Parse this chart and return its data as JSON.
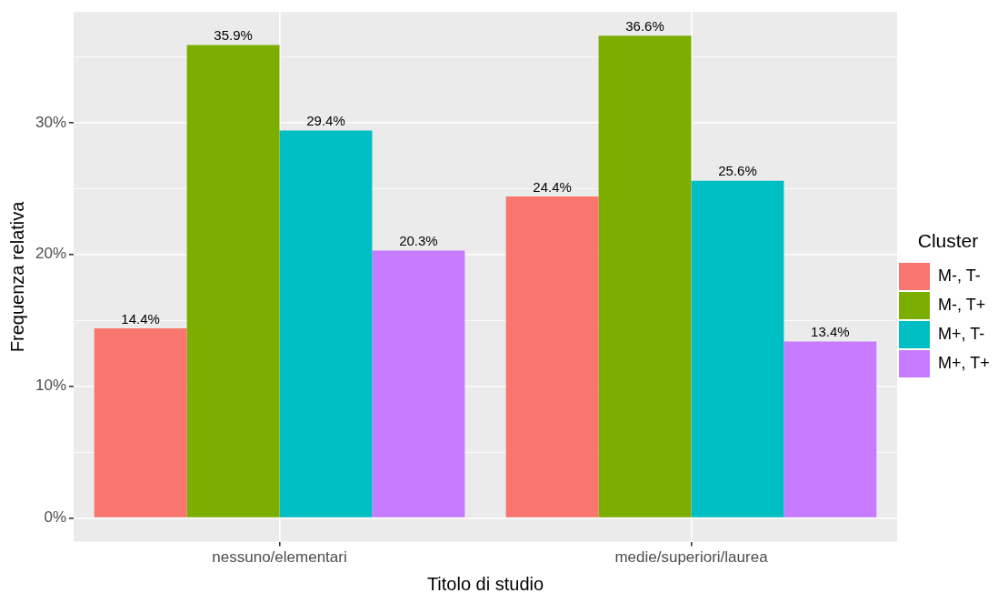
{
  "chart_data": {
    "type": "bar",
    "xlabel": "Titolo di studio",
    "ylabel": "Frequenza relativa",
    "legend_title": "Cluster",
    "legend": "right",
    "grid": true,
    "categories": [
      "nessuno/elementari",
      "medie/superiori/laurea"
    ],
    "ylim": [
      -1.8,
      38.4
    ],
    "yticks": [
      {
        "value": 0,
        "label": "0%"
      },
      {
        "value": 5,
        "label": null
      },
      {
        "value": 10,
        "label": "10%"
      },
      {
        "value": 15,
        "label": null
      },
      {
        "value": 20,
        "label": "20%"
      },
      {
        "value": 25,
        "label": null
      },
      {
        "value": 30,
        "label": "30%"
      },
      {
        "value": 35,
        "label": null
      }
    ],
    "series": [
      {
        "name": "M-, T-",
        "color": "#f8766d",
        "values": [
          14.4,
          24.4
        ],
        "value_labels": [
          "14.4%",
          "24.4%"
        ]
      },
      {
        "name": "M-, T+",
        "color": "#7cae00",
        "values": [
          35.9,
          36.6
        ],
        "value_labels": [
          "35.9%",
          "36.6%"
        ]
      },
      {
        "name": "M+, T-",
        "color": "#00bfc4",
        "values": [
          29.4,
          25.6
        ],
        "value_labels": [
          "29.4%",
          "25.6%"
        ]
      },
      {
        "name": "M+, T+",
        "color": "#c77cff",
        "values": [
          20.3,
          13.4
        ],
        "value_labels": [
          "20.3%",
          "13.4%"
        ]
      }
    ]
  }
}
